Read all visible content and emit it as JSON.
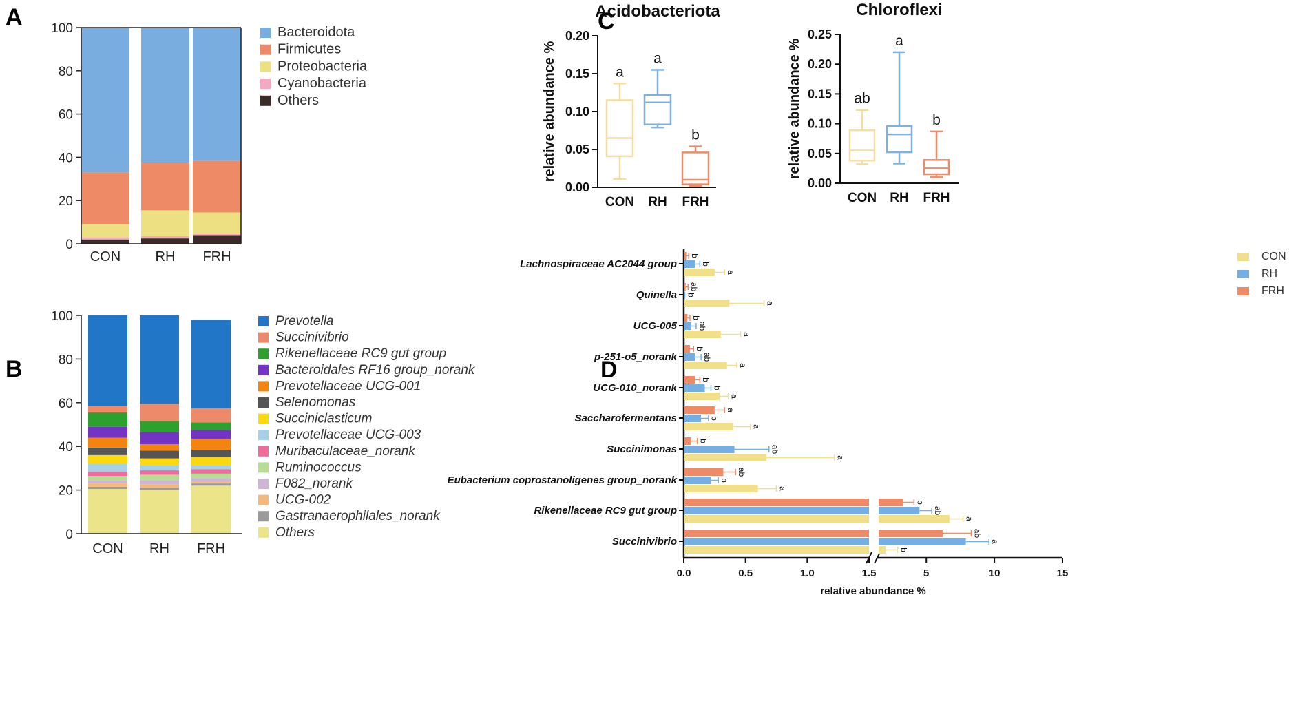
{
  "panel_labels": {
    "a": "A",
    "b": "B",
    "c": "C",
    "d": "D"
  },
  "chart_data": [
    {
      "id": "A",
      "type": "bar",
      "stacked": true,
      "categories": [
        "CON",
        "RH",
        "FRH"
      ],
      "ylim": [
        0,
        100
      ],
      "yticks": [
        0,
        20,
        40,
        60,
        80,
        100
      ],
      "series": [
        {
          "name": "Others",
          "color": "#3b2a28",
          "values": [
            2,
            2.5,
            4
          ]
        },
        {
          "name": "Cyanobacteria",
          "color": "#f6a8c0",
          "values": [
            1,
            1,
            0.5
          ]
        },
        {
          "name": "Proteobacteria",
          "color": "#ece082",
          "values": [
            6,
            12,
            10
          ]
        },
        {
          "name": "Firmicutes",
          "color": "#ef8a66",
          "values": [
            24,
            22,
            24
          ]
        },
        {
          "name": "Bacteroidota",
          "color": "#79acdf",
          "values": [
            67,
            62.5,
            61.5
          ]
        }
      ],
      "legend_order": [
        "Bacteroidota",
        "Firmicutes",
        "Proteobacteria",
        "Cyanobacteria",
        "Others"
      ]
    },
    {
      "id": "B",
      "type": "bar",
      "stacked": true,
      "categories": [
        "CON",
        "RH",
        "FRH"
      ],
      "ylim": [
        0,
        100
      ],
      "yticks": [
        0,
        20,
        40,
        60,
        80,
        100
      ],
      "series": [
        {
          "name": "Others",
          "color": "#ece488",
          "values": [
            20.5,
            20,
            22
          ]
        },
        {
          "name": "Gastranaerophilales_norank",
          "color": "#9a9a9a",
          "values": [
            1,
            1,
            1
          ]
        },
        {
          "name": "UCG-002",
          "color": "#f6b878",
          "values": [
            1.5,
            1.5,
            1
          ]
        },
        {
          "name": "F082_norank",
          "color": "#cfb4d8",
          "values": [
            1.5,
            2,
            1.5
          ]
        },
        {
          "name": "Ruminococcus",
          "color": "#b5de92",
          "values": [
            2,
            2.5,
            2
          ]
        },
        {
          "name": "Muribaculaceae_norank",
          "color": "#ef6b9a",
          "values": [
            2,
            2,
            2
          ]
        },
        {
          "name": "Prevotellaceae UCG-003",
          "color": "#a6d0e8",
          "values": [
            3.5,
            2.5,
            2
          ]
        },
        {
          "name": "Succiniclasticum",
          "color": "#fcd80e",
          "values": [
            4,
            3,
            3.5
          ]
        },
        {
          "name": "Selenomonas",
          "color": "#555555",
          "values": [
            3.5,
            3.5,
            3.5
          ]
        },
        {
          "name": "Prevotellaceae UCG-001",
          "color": "#f5830f",
          "values": [
            4.5,
            3,
            5
          ]
        },
        {
          "name": "Bacteroidales RF16 group_norank",
          "color": "#7334c4",
          "values": [
            5,
            5.5,
            4
          ]
        },
        {
          "name": "Rikenellaceae RC9 gut group",
          "color": "#2da12d",
          "values": [
            6.5,
            5,
            3.5
          ]
        },
        {
          "name": "Succinivibrio",
          "color": "#ec8a6a",
          "values": [
            3,
            8,
            6.5
          ]
        },
        {
          "name": "Prevotella",
          "color": "#2176c8",
          "values": [
            41.5,
            40.5,
            40.5
          ]
        }
      ],
      "legend_order": [
        "Prevotella",
        "Succinivibrio",
        "Rikenellaceae RC9 gut group",
        "Bacteroidales RF16 group_norank",
        "Prevotellaceae UCG-001",
        "Selenomonas",
        "Succiniclasticum",
        "Prevotellaceae UCG-003",
        "Muribaculaceae_norank",
        "Ruminococcus",
        "F082_norank",
        "UCG-002",
        "Gastranaerophilales_norank",
        "Others"
      ]
    },
    {
      "id": "C1",
      "type": "box",
      "title": "Acidobacteriota",
      "ylabel": "relative abundance %",
      "categories": [
        "CON",
        "RH",
        "FRH"
      ],
      "ylim": [
        0,
        0.2
      ],
      "yticks": [
        "0.00",
        "0.05",
        "0.10",
        "0.15",
        "0.20"
      ],
      "colors": [
        "#f2dea0",
        "#7eb0e0",
        "#ef8a66"
      ],
      "boxes": [
        {
          "min": 0.011,
          "q1": 0.041,
          "median": 0.065,
          "q3": 0.115,
          "max": 0.137,
          "sig": "a"
        },
        {
          "min": 0.079,
          "q1": 0.083,
          "median": 0.112,
          "q3": 0.122,
          "max": 0.155,
          "sig": "a"
        },
        {
          "min": 0.002,
          "q1": 0.004,
          "median": 0.01,
          "q3": 0.046,
          "max": 0.054,
          "sig": "b"
        }
      ]
    },
    {
      "id": "C2",
      "type": "box",
      "title": "Chloroflexi",
      "ylabel": "relative abundance %",
      "categories": [
        "CON",
        "RH",
        "FRH"
      ],
      "ylim": [
        0,
        0.25
      ],
      "yticks": [
        "0.00",
        "0.05",
        "0.10",
        "0.15",
        "0.20",
        "0.25"
      ],
      "colors": [
        "#f2dea0",
        "#7eb0e0",
        "#ef8a66"
      ],
      "boxes": [
        {
          "min": 0.032,
          "q1": 0.038,
          "median": 0.055,
          "q3": 0.089,
          "max": 0.123,
          "sig": "ab"
        },
        {
          "min": 0.033,
          "q1": 0.052,
          "median": 0.082,
          "q3": 0.096,
          "max": 0.22,
          "sig": "a"
        },
        {
          "min": 0.01,
          "q1": 0.015,
          "median": 0.025,
          "q3": 0.039,
          "max": 0.087,
          "sig": "b"
        }
      ]
    },
    {
      "id": "D",
      "type": "bar",
      "orientation": "horizontal",
      "xlabel": "relative abundance %",
      "xaxis_left": {
        "range": [
          0,
          1.5
        ],
        "ticks": [
          "0.0",
          "0.5",
          "1.0",
          "1.5"
        ]
      },
      "xaxis_right": {
        "range": [
          1.5,
          15
        ],
        "ticks": [
          "5",
          "10",
          "15"
        ]
      },
      "series_names": [
        "CON",
        "RH",
        "FRH"
      ],
      "colors": {
        "CON": "#f1df8a",
        "RH": "#75aee2",
        "FRH": "#ef8a66"
      },
      "genera": [
        {
          "name": "Lachnospiraceae AC2044 group",
          "CON": [
            0.25,
            0.08,
            "a"
          ],
          "RH": [
            0.09,
            0.04,
            "b"
          ],
          "FRH": [
            0.02,
            0.02,
            "b"
          ]
        },
        {
          "name": "Quinella",
          "CON": [
            0.37,
            0.28,
            "a"
          ],
          "RH": [
            0.005,
            0.003,
            "b"
          ],
          "FRH": [
            0.015,
            0.02,
            "ab"
          ]
        },
        {
          "name": "UCG-005",
          "CON": [
            0.3,
            0.16,
            "a"
          ],
          "RH": [
            0.06,
            0.04,
            "ab"
          ],
          "FRH": [
            0.03,
            0.02,
            "b"
          ]
        },
        {
          "name": "p-251-o5_norank",
          "CON": [
            0.35,
            0.08,
            "a"
          ],
          "RH": [
            0.09,
            0.05,
            "ab"
          ],
          "FRH": [
            0.05,
            0.03,
            "b"
          ]
        },
        {
          "name": "UCG-010_norank",
          "CON": [
            0.29,
            0.07,
            "a"
          ],
          "RH": [
            0.17,
            0.05,
            "b"
          ],
          "FRH": [
            0.09,
            0.04,
            "b"
          ]
        },
        {
          "name": "Saccharofermentans",
          "CON": [
            0.4,
            0.14,
            "a"
          ],
          "RH": [
            0.14,
            0.06,
            "b"
          ],
          "FRH": [
            0.25,
            0.08,
            "a"
          ]
        },
        {
          "name": "Succinimonas",
          "CON": [
            0.67,
            0.55,
            "a"
          ],
          "RH": [
            0.41,
            0.28,
            "ab"
          ],
          "FRH": [
            0.06,
            0.05,
            "b"
          ]
        },
        {
          "name": "Eubacterium coprostanoligenes group_norank",
          "CON": [
            0.6,
            0.15,
            "a"
          ],
          "RH": [
            0.22,
            0.06,
            "b"
          ],
          "FRH": [
            0.32,
            0.1,
            "ab"
          ]
        },
        {
          "name": "Rikenellaceae RC9 gut group",
          "CON": [
            6.7,
            1.0,
            "a"
          ],
          "RH": [
            4.5,
            0.9,
            "ab"
          ],
          "FRH": [
            3.3,
            0.8,
            "b"
          ]
        },
        {
          "name": "Succinivibrio",
          "CON": [
            2.0,
            0.9,
            "b"
          ],
          "RH": [
            7.9,
            1.7,
            "a"
          ],
          "FRH": [
            6.2,
            2.1,
            "ab"
          ]
        }
      ]
    }
  ]
}
